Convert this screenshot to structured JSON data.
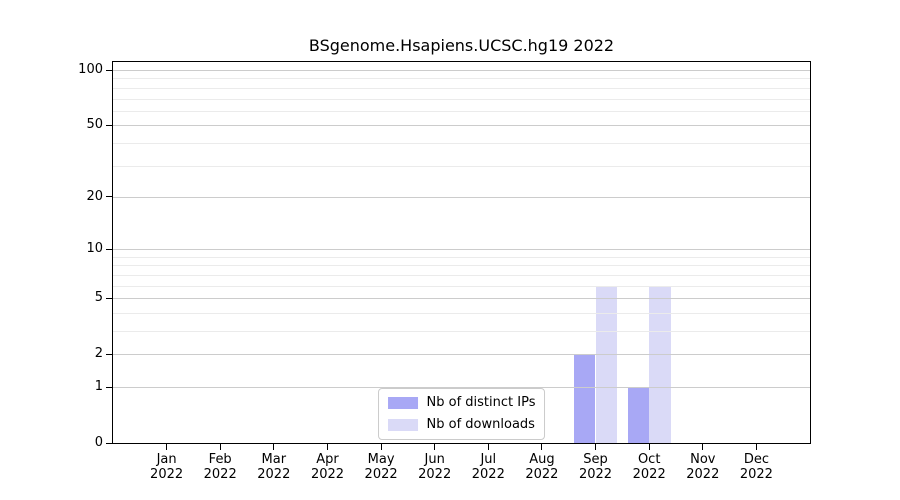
{
  "chart_data": {
    "type": "bar",
    "title": "BSgenome.Hsapiens.UCSC.hg19 2022",
    "categories": [
      "Jan",
      "Feb",
      "Mar",
      "Apr",
      "May",
      "Jun",
      "Jul",
      "Aug",
      "Sep",
      "Oct",
      "Nov",
      "Dec"
    ],
    "year_label": "2022",
    "series": [
      {
        "name": "Nb of distinct IPs",
        "color": "#a8a8f5",
        "values": [
          0,
          0,
          0,
          0,
          0,
          0,
          0,
          0,
          2,
          1,
          0,
          0
        ]
      },
      {
        "name": "Nb of downloads",
        "color": "#dadaf7",
        "values": [
          0,
          0,
          0,
          0,
          0,
          0,
          0,
          0,
          6,
          6,
          0,
          0
        ]
      }
    ],
    "xlabel": "",
    "ylabel": "",
    "y_scale": "log1p",
    "y_major_ticks": [
      0,
      1,
      2,
      5,
      10,
      20,
      50,
      100
    ],
    "y_minor_ticks": [
      3,
      4,
      6,
      7,
      8,
      9,
      30,
      40,
      60,
      70,
      80,
      90
    ],
    "ylim": [
      0,
      110
    ],
    "grid": "both",
    "grid_over_bars": true,
    "legend_position": "lower center",
    "colors": {
      "grid_major": "#cccccc",
      "grid_minor": "#ebebeb",
      "axis": "#000000",
      "text": "#000000"
    }
  }
}
